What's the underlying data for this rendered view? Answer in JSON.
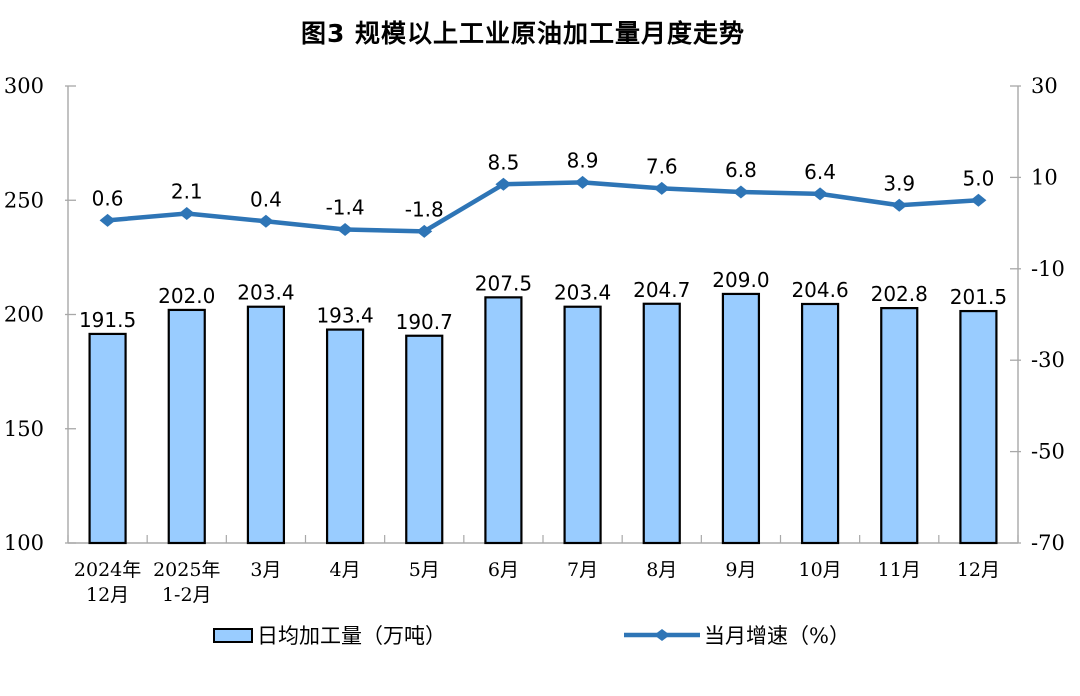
{
  "chart": {
    "title": "图3 规模以上工业原油加工量月度走势"
  },
  "legend": {
    "bar_label": "日均加工量（万吨）",
    "line_label": "当月增速（%）"
  },
  "chart_data": {
    "type": "bar+line combo",
    "title": "图3 规模以上工业原油加工量月度走势",
    "categories": [
      "2024年\n12月",
      "2025年\n1-2月",
      "3月",
      "4月",
      "5月",
      "6月",
      "7月",
      "8月",
      "9月",
      "10月",
      "11月",
      "12月"
    ],
    "series": [
      {
        "name": "日均加工量（万吨）",
        "type": "bar",
        "axis": "left",
        "values": [
          "191.5",
          "202.0",
          "203.4",
          "193.4",
          "190.7",
          "207.5",
          "203.4",
          "204.7",
          "209.0",
          "204.6",
          "202.8",
          "201.5"
        ]
      },
      {
        "name": "当月增速（%）",
        "type": "line",
        "axis": "right",
        "values": [
          "0.6",
          "2.1",
          "0.4",
          "-1.4",
          "-1.8",
          "8.5",
          "8.9",
          "7.6",
          "6.8",
          "6.4",
          "3.9",
          "5.0"
        ]
      }
    ],
    "left_axis": {
      "min": 100,
      "max": 300,
      "step": 50,
      "ticks": [
        "300",
        "250",
        "200",
        "150",
        "100"
      ]
    },
    "right_axis": {
      "min": -70,
      "max": 30,
      "step": 20,
      "ticks": [
        "30",
        "10",
        "-10",
        "-30",
        "-50",
        "-70"
      ]
    },
    "grid": "off",
    "legend_position": "bottom",
    "colors": {
      "bar_fill": "#99CCFF",
      "bar_border": "#000000",
      "line": "#2E75B6",
      "axis": "#A8A8A8",
      "text": "#000000"
    }
  }
}
